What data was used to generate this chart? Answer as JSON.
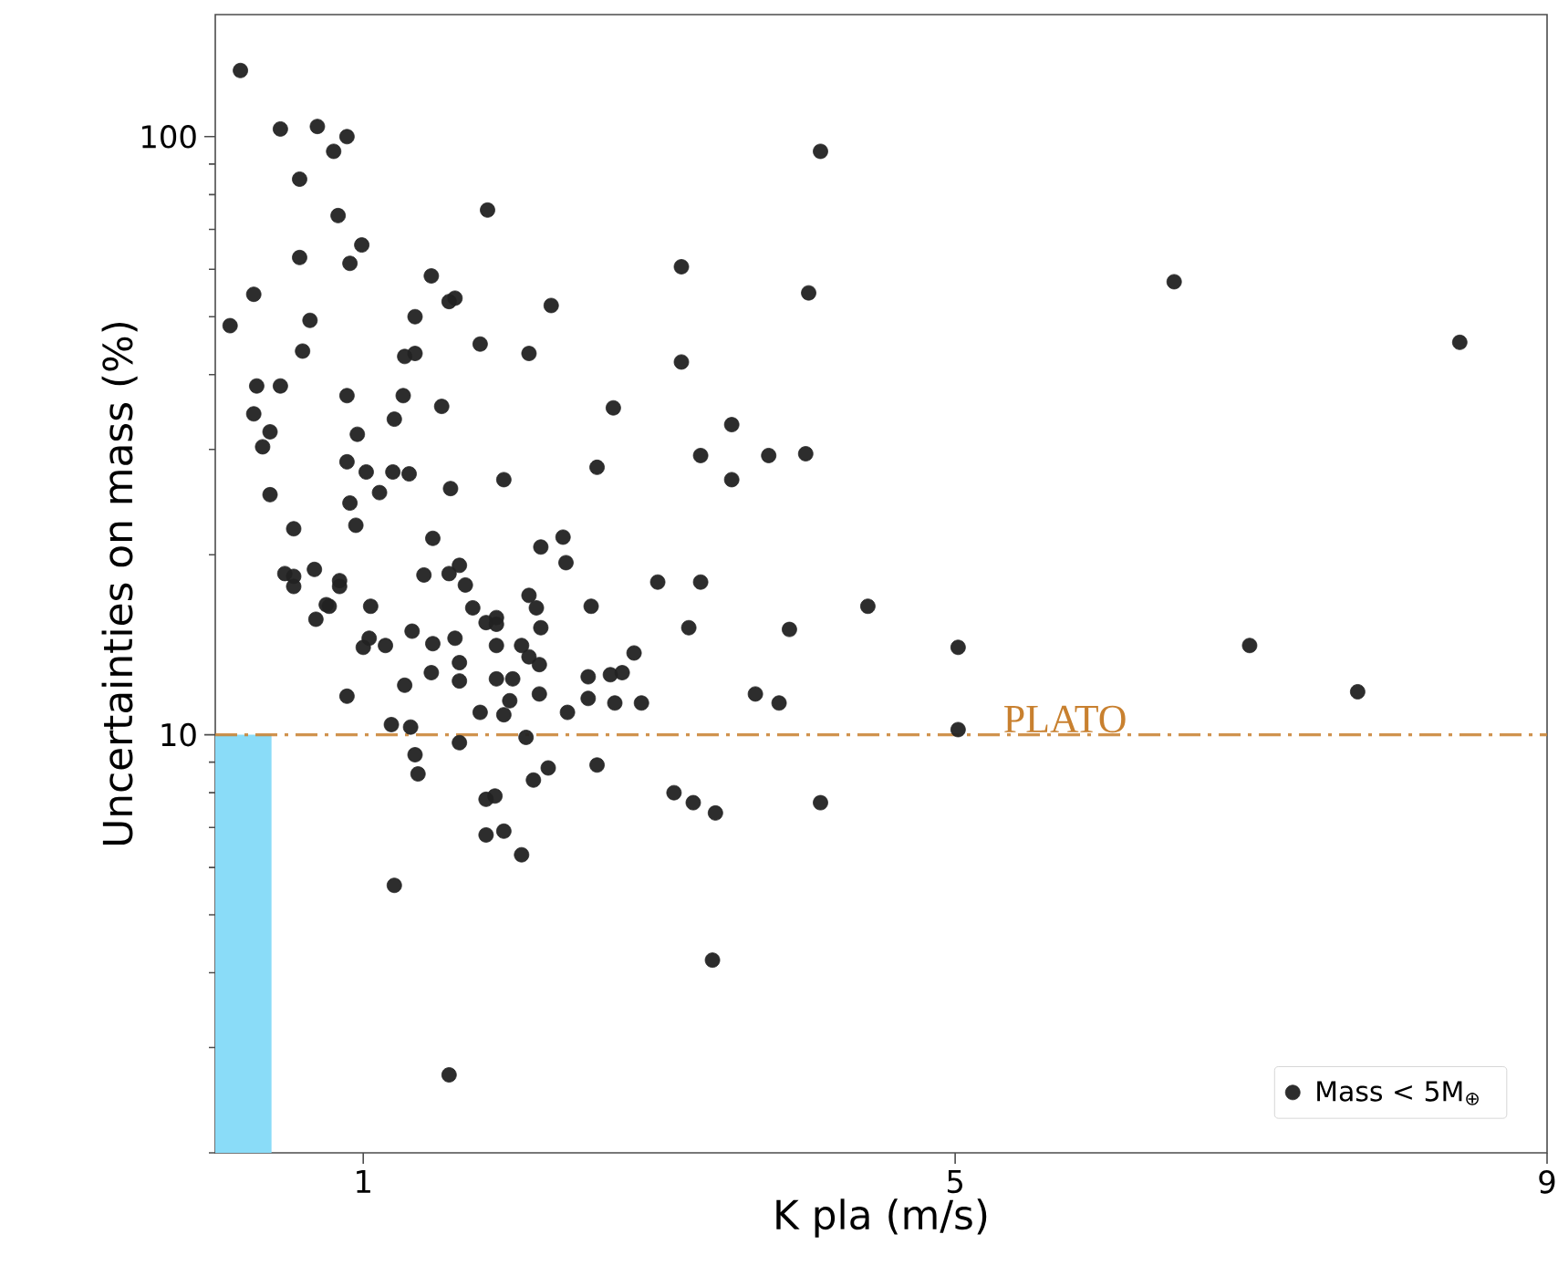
{
  "chart_data": {
    "type": "scatter",
    "xlabel": "K pla (m/s)",
    "ylabel": "Uncertainties on mass (%)",
    "xlim": [
      0,
      9
    ],
    "ylim": [
      2,
      160
    ],
    "xticks": [
      1,
      5,
      9
    ],
    "yticks": [
      10,
      100
    ],
    "log": "y",
    "grid": false,
    "legend": "bottom right",
    "marker": "circle",
    "series": [
      {
        "name": "Mass < 5M$_{⊕}$",
        "color": "#222222",
        "x": [
          0.17,
          0.44,
          0.69,
          0.89,
          0.8,
          0.57,
          0.83,
          1.84,
          0.99,
          0.57,
          0.91,
          1.46,
          0.26,
          1.62,
          1.58,
          0.1,
          0.64,
          1.35,
          0.59,
          1.79,
          1.28,
          1.35,
          0.28,
          0.44,
          0.89,
          1.27,
          0.26,
          0.37,
          0.32,
          1.21,
          1.53,
          0.96,
          0.89,
          1.02,
          1.11,
          1.2,
          1.31,
          1.59,
          1.95,
          0.37,
          0.91,
          0.53,
          0.95,
          1.47,
          0.47,
          0.53,
          0.67,
          0.84,
          1.41,
          1.58,
          1.65,
          1.69,
          0.77,
          1.05,
          1.74,
          3.15,
          2.27,
          2.12,
          3.15,
          2.69,
          3.49,
          3.28,
          3.74,
          3.49,
          2.58,
          2.35,
          2.2,
          2.37,
          2.99,
          3.28,
          2.12,
          2.17,
          2.54,
          1.9,
          4.09,
          4.01,
          6.48,
          8.41,
          3.99,
          4.41,
          3.88,
          5.02,
          6.99,
          7.72,
          3.81,
          5.02,
          4.09,
          0.53,
          0.84,
          0.75,
          0.68,
          1.0,
          1.04,
          1.15,
          1.33,
          1.47,
          1.62,
          1.65,
          1.83,
          1.9,
          1.9,
          1.46,
          1.28,
          1.65,
          1.9,
          0.89,
          1.79,
          1.95,
          1.19,
          1.32,
          1.65,
          1.35,
          1.37,
          1.83,
          1.89,
          1.83,
          1.95,
          1.21,
          1.58,
          2.2,
          3.2,
          2.07,
          2.12,
          2.19,
          2.83,
          2.01,
          2.52,
          2.67,
          2.75,
          2.19,
          2.52,
          2.7,
          2.88,
          1.99,
          2.38,
          3.65,
          2.1,
          2.58,
          2.25,
          2.15,
          3.1,
          3.23,
          3.38,
          2.07,
          3.36
        ],
        "values": [
          129,
          103,
          104,
          100,
          94.5,
          84.9,
          73.8,
          75.4,
          65.9,
          62.8,
          61.4,
          58.5,
          54.5,
          53.7,
          53.0,
          48.3,
          49.3,
          50.0,
          43.8,
          45.0,
          42.9,
          43.4,
          38.3,
          38.3,
          36.9,
          36.9,
          34.4,
          32.1,
          30.3,
          33.7,
          35.4,
          31.8,
          28.6,
          27.5,
          25.4,
          27.5,
          27.3,
          25.8,
          26.7,
          25.2,
          24.4,
          22.1,
          22.4,
          21.3,
          18.6,
          18.4,
          18.9,
          18.1,
          18.5,
          18.6,
          19.2,
          17.8,
          16.4,
          16.4,
          16.3,
          60.6,
          52.2,
          43.4,
          42.0,
          35.2,
          33.0,
          29.3,
          29.3,
          26.7,
          28.0,
          21.4,
          20.6,
          19.4,
          18.0,
          18.0,
          17.1,
          16.3,
          16.4,
          15.7,
          94.5,
          54.8,
          57.2,
          45.3,
          29.5,
          16.4,
          15.0,
          14.0,
          14.1,
          11.8,
          11.3,
          10.2,
          7.7,
          17.7,
          17.7,
          16.5,
          15.6,
          14.0,
          14.5,
          14.1,
          14.9,
          14.2,
          14.5,
          13.2,
          15.4,
          15.3,
          14.1,
          12.7,
          12.1,
          12.3,
          12.4,
          11.6,
          10.9,
          10.8,
          10.4,
          10.3,
          9.7,
          9.26,
          8.6,
          7.8,
          7.9,
          6.8,
          6.9,
          5.6,
          2.7,
          15.1,
          15.1,
          14.1,
          13.5,
          13.1,
          13.7,
          12.4,
          12.5,
          12.6,
          12.7,
          11.7,
          11.5,
          11.3,
          11.3,
          11.4,
          10.9,
          11.7,
          9.9,
          8.9,
          8.8,
          8.4,
          8.0,
          7.7,
          7.4,
          6.3,
          4.2
        ]
      }
    ],
    "ref_lines": [
      {
        "axis": "y",
        "value": 10,
        "label": "PLATO",
        "color": "#c8802f",
        "line_style": "dashdot"
      }
    ],
    "bands": [
      {
        "axis": "x",
        "from": 0,
        "to": 0.38,
        "color": "#8adcf8"
      }
    ]
  }
}
